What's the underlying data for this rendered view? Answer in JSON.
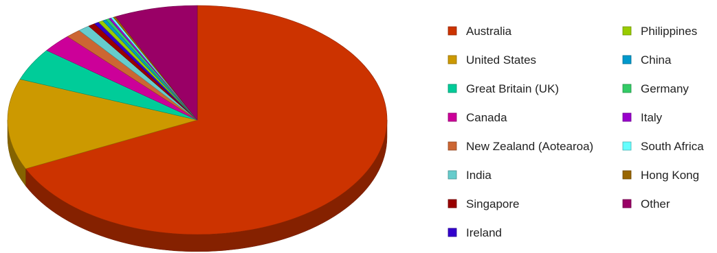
{
  "chart_data": {
    "type": "pie",
    "title": "",
    "style": "3d-tilted",
    "legend_position": "right",
    "slices": [
      {
        "label": "Australia",
        "value": 68.0,
        "color": "#cc3300"
      },
      {
        "label": "United States",
        "value": 12.8,
        "color": "#cc9900"
      },
      {
        "label": "Great Britain (UK)",
        "value": 4.6,
        "color": "#00cc99"
      },
      {
        "label": "Canada",
        "value": 2.6,
        "color": "#cc0099"
      },
      {
        "label": "New Zealand (Aotearoa)",
        "value": 1.3,
        "color": "#cc6633"
      },
      {
        "label": "India",
        "value": 1.0,
        "color": "#66cccc"
      },
      {
        "label": "Singapore",
        "value": 0.6,
        "color": "#990000"
      },
      {
        "label": "Ireland",
        "value": 0.4,
        "color": "#3300cc"
      },
      {
        "label": "Philippines",
        "value": 0.4,
        "color": "#99cc00"
      },
      {
        "label": "China",
        "value": 0.3,
        "color": "#0099cc"
      },
      {
        "label": "Germany",
        "value": 0.3,
        "color": "#33cc66"
      },
      {
        "label": "Italy",
        "value": 0.2,
        "color": "#9900cc"
      },
      {
        "label": "South Africa",
        "value": 0.2,
        "color": "#66ffff"
      },
      {
        "label": "Hong Kong",
        "value": 0.2,
        "color": "#996600"
      },
      {
        "label": "Other",
        "value": 7.1,
        "color": "#990066"
      }
    ]
  }
}
